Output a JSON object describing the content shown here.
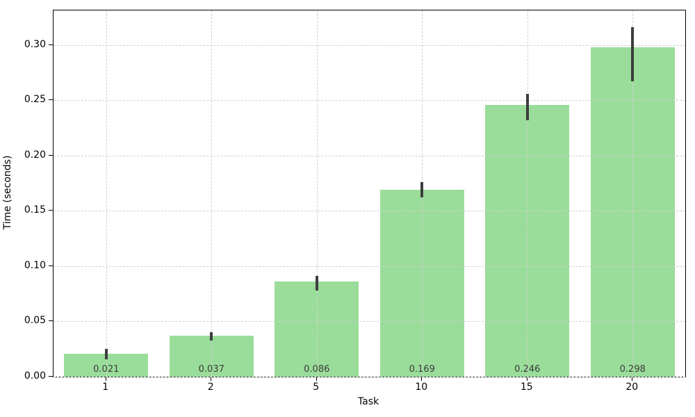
{
  "chart_data": {
    "type": "bar",
    "title": "",
    "xlabel": "Task",
    "ylabel": "Time (seconds)",
    "categories": [
      "1",
      "2",
      "5",
      "10",
      "15",
      "20"
    ],
    "values": [
      0.021,
      0.037,
      0.086,
      0.169,
      0.246,
      0.298
    ],
    "bar_labels": [
      "0.021",
      "0.037",
      "0.086",
      "0.169",
      "0.246",
      "0.298"
    ],
    "error_low": [
      0.016,
      0.033,
      0.078,
      0.162,
      0.232,
      0.267
    ],
    "error_high": [
      0.025,
      0.04,
      0.091,
      0.176,
      0.256,
      0.316
    ],
    "yticks": [
      0.0,
      0.05,
      0.1,
      0.15,
      0.2,
      0.25,
      0.3
    ],
    "ytick_labels": [
      "0.00",
      "0.05",
      "0.10",
      "0.15",
      "0.20",
      "0.25",
      "0.30"
    ],
    "ylim": [
      0,
      0.3314
    ],
    "bar_width_fraction": 0.8,
    "grid": "dashed, both axes, drawn above bars",
    "legend": "none",
    "colors": {
      "bar_fill": "#9ADD9A",
      "error_bar": "#3d3d3d",
      "grid_line": "#cfcfcf",
      "axis_line": "#000000",
      "tick_text": "#000000",
      "bar_label_text": "#3a3a3a",
      "background": "#ffffff"
    }
  }
}
